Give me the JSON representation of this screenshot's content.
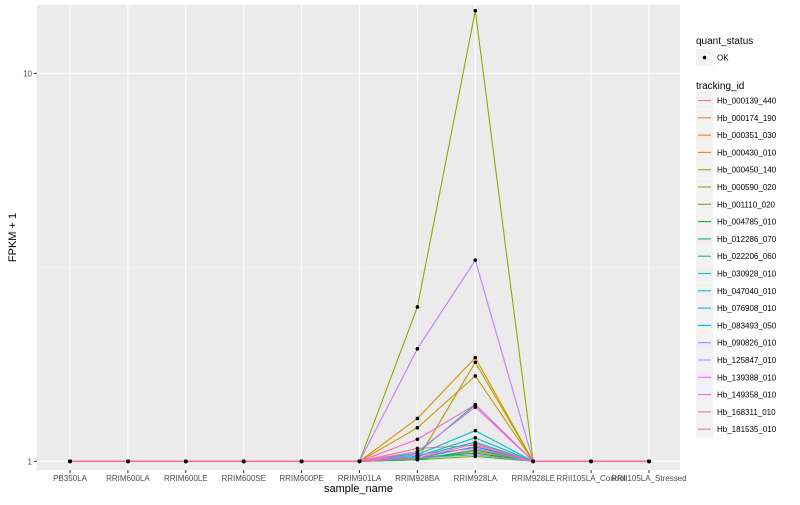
{
  "chart_data": {
    "type": "line",
    "xlabel": "sample_name",
    "ylabel": "FPKM + 1",
    "y_scale": "log10",
    "yticks": [
      1,
      10
    ],
    "ylim": [
      0.95,
      15
    ],
    "grid": true,
    "legend_placement": "right",
    "categories": [
      "PB350LA",
      "RRIM600LA",
      "RRIM600LE",
      "RRIM600SE",
      "RRIM600PE",
      "RRIM901LA",
      "RRIM928BA",
      "RRIM928LA",
      "RRIM928LE",
      "RRII105LA_Control",
      "RRII105LA_Stressed"
    ],
    "quant_status_legend": {
      "title": "quant_status",
      "items": [
        "OK"
      ]
    },
    "series_legend_title": "tracking_id",
    "series": [
      {
        "name": "Hb_000139_440",
        "color": "#F8766D",
        "values": [
          1,
          1,
          1,
          1,
          1,
          1,
          1.08,
          1.1,
          1,
          1,
          1
        ]
      },
      {
        "name": "Hb_000174_190",
        "color": "#EC8239",
        "values": [
          1,
          1,
          1,
          1,
          1,
          1,
          1.02,
          1.06,
          1,
          1,
          1
        ]
      },
      {
        "name": "Hb_000351_030",
        "color": "#DB8E00",
        "values": [
          1,
          1,
          1,
          1,
          1,
          1,
          1.29,
          1.85,
          1,
          1,
          1
        ]
      },
      {
        "name": "Hb_000430_010",
        "color": "#C79800",
        "values": [
          1,
          1,
          1,
          1,
          1,
          1,
          1.22,
          1.66,
          1,
          1,
          1
        ]
      },
      {
        "name": "Hb_000450_140",
        "color": "#AEA200",
        "values": [
          1,
          1,
          1,
          1,
          1,
          1,
          1.01,
          1.8,
          1,
          1,
          1
        ]
      },
      {
        "name": "Hb_000590_020",
        "color": "#8FAA00",
        "values": [
          1,
          1,
          1,
          1,
          1,
          1,
          2.5,
          14.5,
          1,
          1,
          1
        ]
      },
      {
        "name": "Hb_001110_020",
        "color": "#64B200",
        "values": [
          1,
          1,
          1,
          1,
          1,
          1,
          1.01,
          1.03,
          1,
          1,
          1
        ]
      },
      {
        "name": "Hb_004785_010",
        "color": "#00B81B",
        "values": [
          1,
          1,
          1,
          1,
          1,
          1,
          1.02,
          1.05,
          1,
          1,
          1
        ]
      },
      {
        "name": "Hb_012286_070",
        "color": "#00BD5C",
        "values": [
          1,
          1,
          1,
          1,
          1,
          1,
          1.01,
          1.07,
          1,
          1,
          1
        ]
      },
      {
        "name": "Hb_022206_060",
        "color": "#00C08E",
        "values": [
          1,
          1,
          1,
          1,
          1,
          1,
          1.05,
          1.4,
          1,
          1,
          1
        ]
      },
      {
        "name": "Hb_030928_010",
        "color": "#00C1B7",
        "values": [
          1,
          1,
          1,
          1,
          1,
          1,
          1.03,
          1.15,
          1,
          1,
          1
        ]
      },
      {
        "name": "Hb_047040_010",
        "color": "#00BDDC",
        "values": [
          1,
          1,
          1,
          1,
          1,
          1,
          1.04,
          1.2,
          1,
          1,
          1
        ]
      },
      {
        "name": "Hb_076908_010",
        "color": "#00B3F6",
        "values": [
          1,
          1,
          1,
          1,
          1,
          1,
          1.03,
          1.12,
          1,
          1,
          1
        ]
      },
      {
        "name": "Hb_083493_050",
        "color": "#00A5FF",
        "values": [
          1,
          1,
          1,
          1,
          1,
          1,
          1.02,
          1.09,
          1,
          1,
          1
        ]
      },
      {
        "name": "Hb_090826_010",
        "color": "#7F96FF",
        "values": [
          1,
          1,
          1,
          1,
          1,
          1,
          1.02,
          1.04,
          1,
          1,
          1
        ]
      },
      {
        "name": "Hb_125847_010",
        "color": "#BC81FF",
        "values": [
          1,
          1,
          1,
          1,
          1,
          1,
          1.95,
          3.3,
          1,
          1,
          1
        ]
      },
      {
        "name": "Hb_139388_010",
        "color": "#E26EF7",
        "values": [
          1,
          1,
          1,
          1,
          1,
          1,
          1.06,
          1.38,
          1,
          1,
          1
        ]
      },
      {
        "name": "Hb_149358_010",
        "color": "#F863DF",
        "values": [
          1,
          1,
          1,
          1,
          1,
          1,
          1.04,
          1.08,
          1,
          1,
          1
        ]
      },
      {
        "name": "Hb_168311_010",
        "color": "#FF62BF",
        "values": [
          1,
          1,
          1,
          1,
          1,
          1,
          1.14,
          1.4,
          1,
          1,
          1
        ]
      },
      {
        "name": "Hb_181535_010",
        "color": "#FF6A98",
        "values": [
          1,
          1,
          1,
          1,
          1,
          1,
          1.02,
          1.11,
          1,
          1,
          1
        ]
      }
    ]
  }
}
